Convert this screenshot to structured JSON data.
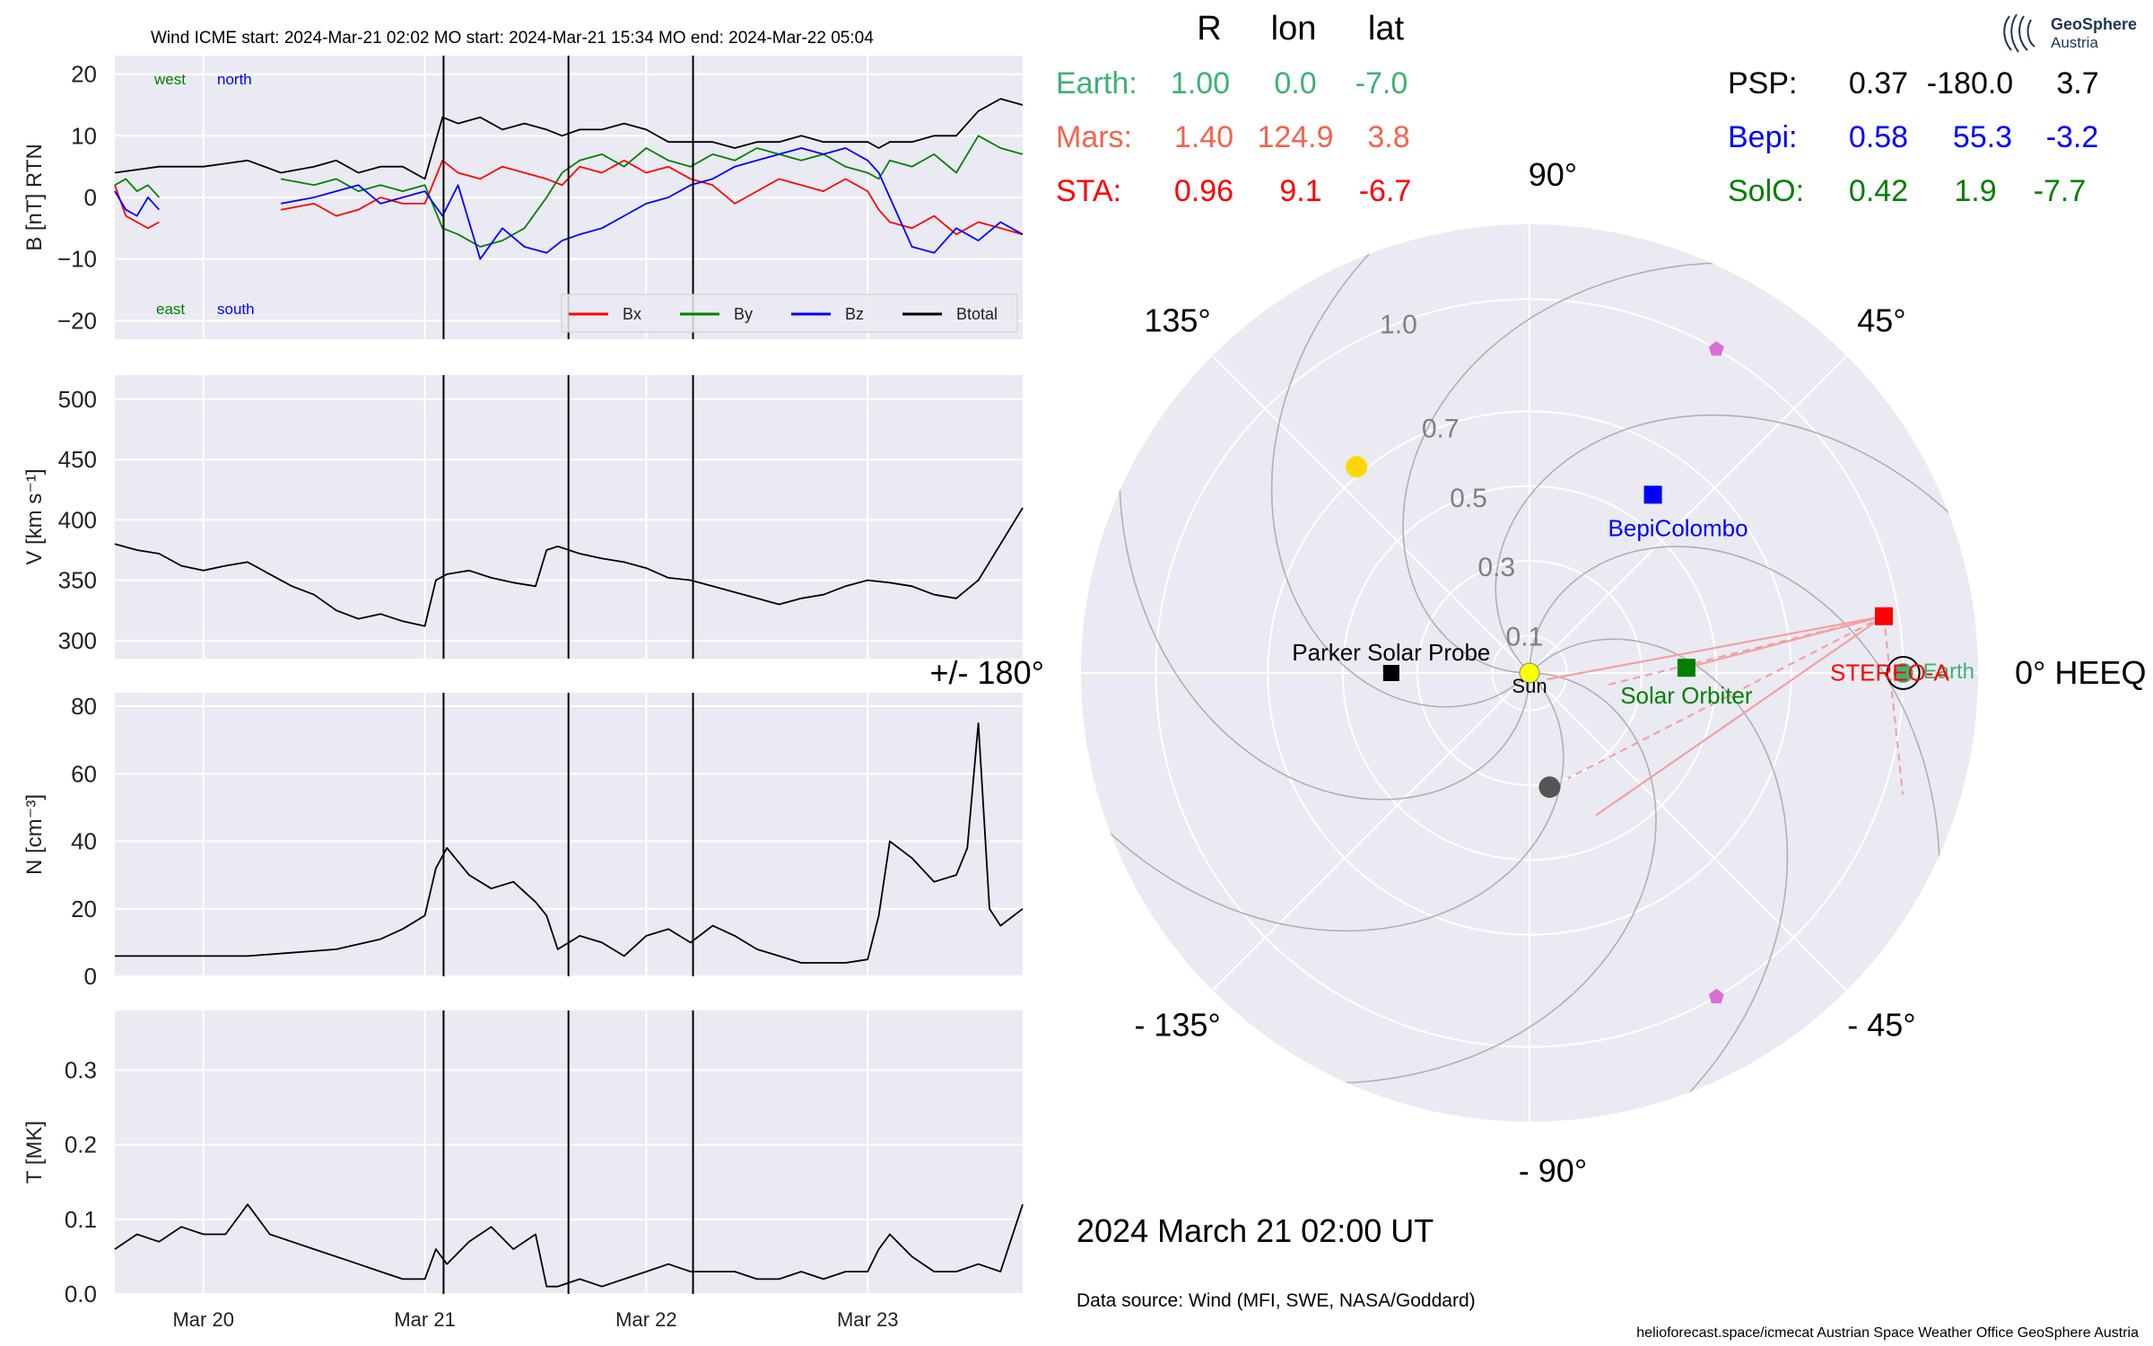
{
  "header": {
    "title": "Wind    ICME start: 2024-Mar-21 02:02   MO start: 2024-Mar-21 15:34   MO end: 2024-Mar-22 05:04"
  },
  "colors": {
    "bx": "#ff0000",
    "by": "#008000",
    "bz": "#0000ff",
    "btotal": "#000000",
    "panel_bg": "#eaeaf2",
    "earth": "#3cb371",
    "mars": "#f4634a",
    "sta": "#ff0000",
    "psp": "#000000",
    "bepi": "#0000ff",
    "solo": "#008000",
    "sun": "#ffff00",
    "mercury": "#555555",
    "venus": "#ffd700",
    "l4l5": "#da70d6",
    "footpoint": "#f4a0a0"
  },
  "chart_data": [
    {
      "type": "line",
      "panel": "B",
      "ylabel": "B [nT] RTN",
      "ylim": [
        -23,
        23
      ],
      "yticks": [
        "20",
        "10",
        "0",
        "−10",
        "−20"
      ],
      "ytick_values": [
        20,
        10,
        0,
        -10,
        -20
      ],
      "annotations": {
        "west": "west",
        "north": "north",
        "east": "east",
        "south": "south"
      },
      "legend": {
        "placement": "lower-right",
        "entries": [
          "Bx",
          "By",
          "Bz",
          "Btotal"
        ]
      },
      "time_range_days": [
        19.6,
        23.7
      ],
      "series": [
        {
          "name": "Bx",
          "x": [
            19.6,
            19.65,
            19.7,
            19.75,
            19.8,
            20.2,
            20.35,
            20.5,
            20.6,
            20.7,
            20.8,
            20.9,
            21.0,
            21.08,
            21.15,
            21.25,
            21.35,
            21.45,
            21.55,
            21.62,
            21.7,
            21.8,
            21.9,
            22.0,
            22.1,
            22.2,
            22.3,
            22.4,
            22.5,
            22.6,
            22.7,
            22.8,
            22.9,
            23.0,
            23.05,
            23.1,
            23.2,
            23.3,
            23.4,
            23.5,
            23.6,
            23.7
          ],
          "y": [
            2,
            -3,
            -4,
            -5,
            -4,
            null,
            -2,
            -1,
            -3,
            -2,
            0,
            -1,
            -1,
            6,
            4,
            3,
            5,
            4,
            3,
            2,
            5,
            4,
            6,
            4,
            5,
            3,
            2,
            -1,
            1,
            3,
            2,
            1,
            3,
            1,
            -2,
            -4,
            -5,
            -3,
            -6,
            -4,
            -5,
            -6
          ]
        },
        {
          "name": "By",
          "x": [
            19.6,
            19.65,
            19.7,
            19.75,
            19.8,
            20.2,
            20.35,
            20.5,
            20.6,
            20.7,
            20.8,
            20.9,
            21.0,
            21.08,
            21.15,
            21.25,
            21.35,
            21.45,
            21.55,
            21.62,
            21.7,
            21.8,
            21.9,
            22.0,
            22.1,
            22.2,
            22.3,
            22.4,
            22.5,
            22.6,
            22.7,
            22.8,
            22.9,
            23.0,
            23.05,
            23.1,
            23.2,
            23.3,
            23.4,
            23.5,
            23.6,
            23.7
          ],
          "y": [
            2,
            3,
            1,
            2,
            0,
            null,
            3,
            2,
            3,
            1,
            2,
            1,
            2,
            -5,
            -6,
            -8,
            -7,
            -5,
            0,
            4,
            6,
            7,
            5,
            8,
            6,
            5,
            7,
            6,
            8,
            7,
            6,
            7,
            5,
            4,
            3,
            6,
            5,
            7,
            4,
            10,
            8,
            7
          ]
        },
        {
          "name": "Bz",
          "x": [
            19.6,
            19.65,
            19.7,
            19.75,
            19.8,
            20.2,
            20.35,
            20.5,
            20.6,
            20.7,
            20.8,
            20.9,
            21.0,
            21.08,
            21.15,
            21.25,
            21.35,
            21.45,
            21.55,
            21.62,
            21.7,
            21.8,
            21.9,
            22.0,
            22.1,
            22.2,
            22.3,
            22.4,
            22.5,
            22.6,
            22.7,
            22.8,
            22.9,
            23.0,
            23.05,
            23.1,
            23.2,
            23.3,
            23.4,
            23.5,
            23.6,
            23.7
          ],
          "y": [
            1,
            -2,
            -3,
            0,
            -2,
            null,
            -1,
            0,
            1,
            2,
            -1,
            0,
            1,
            -3,
            2,
            -10,
            -5,
            -8,
            -9,
            -7,
            -6,
            -5,
            -3,
            -1,
            0,
            2,
            3,
            5,
            6,
            7,
            8,
            7,
            8,
            6,
            4,
            0,
            -8,
            -9,
            -5,
            -7,
            -4,
            -6
          ]
        },
        {
          "name": "Btotal",
          "x": [
            19.6,
            19.8,
            20.0,
            20.2,
            20.35,
            20.5,
            20.6,
            20.7,
            20.8,
            20.9,
            21.0,
            21.08,
            21.15,
            21.25,
            21.35,
            21.45,
            21.55,
            21.62,
            21.7,
            21.8,
            21.9,
            22.0,
            22.1,
            22.2,
            22.3,
            22.4,
            22.5,
            22.6,
            22.7,
            22.8,
            22.9,
            23.0,
            23.05,
            23.1,
            23.2,
            23.3,
            23.4,
            23.5,
            23.6,
            23.7
          ],
          "y": [
            4,
            5,
            5,
            6,
            4,
            5,
            6,
            4,
            5,
            5,
            3,
            13,
            12,
            13,
            11,
            12,
            11,
            10,
            11,
            11,
            12,
            11,
            9,
            9,
            9,
            8,
            9,
            9,
            10,
            9,
            9,
            9,
            8,
            9,
            9,
            10,
            10,
            14,
            16,
            15
          ]
        }
      ]
    },
    {
      "type": "line",
      "panel": "V",
      "ylabel": "V [km s⁻¹]",
      "ylim": [
        285,
        520
      ],
      "yticks": [
        "500",
        "450",
        "400",
        "350",
        "300"
      ],
      "ytick_values": [
        500,
        450,
        400,
        350,
        300
      ],
      "series": [
        {
          "name": "V",
          "x": [
            19.6,
            19.7,
            19.8,
            19.9,
            20.0,
            20.1,
            20.2,
            20.3,
            20.4,
            20.5,
            20.6,
            20.7,
            20.8,
            20.9,
            21.0,
            21.05,
            21.1,
            21.2,
            21.3,
            21.4,
            21.5,
            21.55,
            21.6,
            21.7,
            21.8,
            21.9,
            22.0,
            22.1,
            22.2,
            22.3,
            22.4,
            22.5,
            22.6,
            22.7,
            22.8,
            22.9,
            23.0,
            23.1,
            23.2,
            23.3,
            23.4,
            23.5,
            23.6,
            23.7
          ],
          "y": [
            380,
            375,
            372,
            362,
            358,
            362,
            365,
            355,
            345,
            338,
            325,
            318,
            322,
            316,
            312,
            350,
            355,
            358,
            352,
            348,
            345,
            375,
            378,
            372,
            368,
            365,
            360,
            352,
            350,
            345,
            340,
            335,
            330,
            335,
            338,
            345,
            350,
            348,
            345,
            338,
            335,
            350,
            380,
            410
          ]
        }
      ]
    },
    {
      "type": "line",
      "panel": "N",
      "ylabel": "N [cm⁻³]",
      "ylim": [
        0,
        84
      ],
      "yticks": [
        "80",
        "60",
        "40",
        "20",
        "0"
      ],
      "ytick_values": [
        80,
        60,
        40,
        20,
        0
      ],
      "series": [
        {
          "name": "N",
          "x": [
            19.6,
            19.8,
            20.0,
            20.2,
            20.4,
            20.6,
            20.8,
            20.9,
            21.0,
            21.05,
            21.1,
            21.2,
            21.3,
            21.4,
            21.5,
            21.55,
            21.6,
            21.7,
            21.8,
            21.9,
            22.0,
            22.1,
            22.2,
            22.3,
            22.4,
            22.5,
            22.6,
            22.7,
            22.8,
            22.9,
            23.0,
            23.05,
            23.1,
            23.2,
            23.3,
            23.4,
            23.45,
            23.5,
            23.55,
            23.6,
            23.7
          ],
          "y": [
            6,
            6,
            6,
            6,
            7,
            8,
            11,
            14,
            18,
            32,
            38,
            30,
            26,
            28,
            22,
            18,
            8,
            12,
            10,
            6,
            12,
            14,
            10,
            15,
            12,
            8,
            6,
            4,
            4,
            4,
            5,
            18,
            40,
            35,
            28,
            30,
            38,
            75,
            20,
            15,
            20
          ]
        }
      ]
    },
    {
      "type": "line",
      "panel": "T",
      "ylabel": "T [MK]",
      "ylim": [
        0,
        0.38
      ],
      "yticks": [
        "0.3",
        "0.2",
        "0.1",
        "0.0"
      ],
      "ytick_values": [
        0.3,
        0.2,
        0.1,
        0.0
      ],
      "xticks": [
        "Mar 20",
        "Mar 21",
        "Mar 22",
        "Mar 23"
      ],
      "xtick_values": [
        20,
        21,
        22,
        23
      ],
      "series": [
        {
          "name": "T",
          "x": [
            19.6,
            19.7,
            19.8,
            19.9,
            20.0,
            20.1,
            20.2,
            20.3,
            20.4,
            20.5,
            20.6,
            20.7,
            20.8,
            20.9,
            21.0,
            21.05,
            21.1,
            21.2,
            21.3,
            21.4,
            21.5,
            21.55,
            21.6,
            21.7,
            21.8,
            21.9,
            22.0,
            22.1,
            22.2,
            22.3,
            22.4,
            22.5,
            22.6,
            22.7,
            22.8,
            22.9,
            23.0,
            23.05,
            23.1,
            23.2,
            23.3,
            23.4,
            23.5,
            23.6,
            23.7
          ],
          "y": [
            0.06,
            0.08,
            0.07,
            0.09,
            0.08,
            0.08,
            0.12,
            0.08,
            0.07,
            0.06,
            0.05,
            0.04,
            0.03,
            0.02,
            0.02,
            0.06,
            0.04,
            0.07,
            0.09,
            0.06,
            0.08,
            0.01,
            0.01,
            0.02,
            0.01,
            0.02,
            0.03,
            0.04,
            0.03,
            0.03,
            0.03,
            0.02,
            0.02,
            0.03,
            0.02,
            0.03,
            0.03,
            0.06,
            0.08,
            0.05,
            0.03,
            0.03,
            0.04,
            0.03,
            0.12
          ]
        }
      ]
    },
    {
      "type": "scatter",
      "panel": "polar-heeq",
      "coordinate_system": "HEEQ",
      "r_ticks": [
        "0.1",
        "0.3",
        "0.5",
        "0.7",
        "1.0"
      ],
      "r_tick_values": [
        0.1,
        0.3,
        0.5,
        0.7,
        1.0
      ],
      "r_max": 1.2,
      "angle_labels": {
        "a0": "0° HEEQ",
        "a45": "45°",
        "a90": "90°",
        "a135": "135°",
        "a180": "+/- 180°",
        "am135": "- 135°",
        "am90": "- 90°",
        "am45": "- 45°"
      },
      "bodies": [
        {
          "name": "Sun",
          "label": "Sun",
          "r": 0.0,
          "lon": 0.0,
          "marker": "circle"
        },
        {
          "name": "Earth",
          "label": "Earth",
          "r": 1.0,
          "lon": 0.0,
          "marker": "circle"
        },
        {
          "name": "STEREO-A",
          "label": "STEREO-A",
          "r": 0.96,
          "lon": 9.1,
          "marker": "square"
        },
        {
          "name": "Parker Solar Probe",
          "label": "Parker Solar Probe",
          "r": 0.37,
          "lon": -180.0,
          "marker": "square"
        },
        {
          "name": "BepiColombo",
          "label": "BepiColombo",
          "r": 0.58,
          "lon": 55.3,
          "marker": "square"
        },
        {
          "name": "Solar Orbiter",
          "label": "Solar Orbiter",
          "r": 0.42,
          "lon": 1.9,
          "marker": "square"
        },
        {
          "name": "Venus",
          "r": 0.72,
          "lon": 130.0,
          "marker": "circle"
        },
        {
          "name": "Mercury",
          "r": 0.31,
          "lon": -80.0,
          "marker": "circle"
        },
        {
          "name": "L4",
          "r": 1.0,
          "lon": 60.0,
          "marker": "pentagon"
        },
        {
          "name": "L5",
          "r": 1.0,
          "lon": -60.0,
          "marker": "pentagon"
        }
      ]
    }
  ],
  "positions_table": {
    "headers": {
      "r": "R",
      "lon": "lon",
      "lat": "lat"
    },
    "left_rows": [
      {
        "name": "Earth:",
        "r": "1.00",
        "lon": "0.0",
        "lat": "-7.0"
      },
      {
        "name": "Mars:",
        "r": "1.40",
        "lon": "124.9",
        "lat": "3.8"
      },
      {
        "name": "STA:",
        "r": "0.96",
        "lon": "9.1",
        "lat": "-6.7"
      }
    ],
    "right_rows": [
      {
        "name": "PSP:",
        "r": "0.37",
        "lon": "-180.0",
        "lat": "3.7"
      },
      {
        "name": "Bepi:",
        "r": "0.58",
        "lon": "55.3",
        "lat": "-3.2"
      },
      {
        "name": "SolO:",
        "r": "0.42",
        "lon": "1.9",
        "lat": "-7.7"
      }
    ]
  },
  "datetime": "2024 March 21  02:00 UT",
  "data_source": "Data source: Wind (MFI, SWE, NASA/Goddard)",
  "logo": {
    "line1": "GeoSphere",
    "line2": "Austria"
  },
  "credits": "helioforecast.space/icmecat   Austrian Space Weather Office   GeoSphere Austria"
}
